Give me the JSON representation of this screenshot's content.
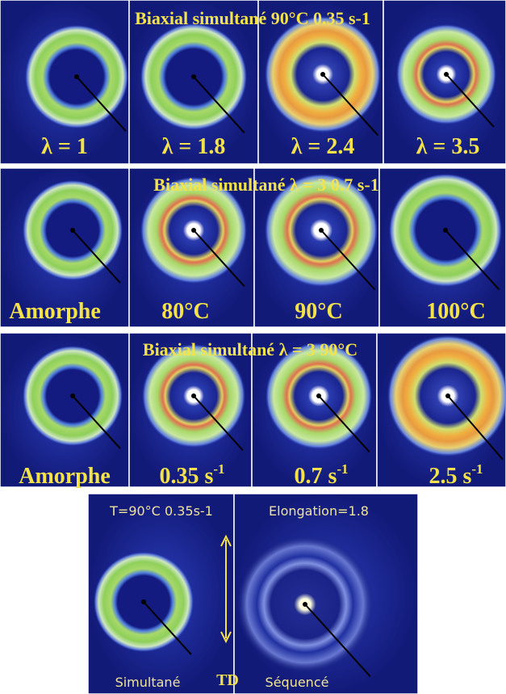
{
  "panels": [
    {
      "title": "Biaxial simultané  90°C  0.35 s-1",
      "labels": [
        "λ = 1",
        "λ = 1.8",
        "λ = 2.4",
        "λ = 3.5"
      ]
    },
    {
      "title": "Biaxial simultané  λ = 3  0.7 s-1",
      "labels": [
        "Amorphe",
        "80°C",
        "90°C",
        "100°C"
      ]
    },
    {
      "title": "Biaxial simultané  λ = 3  90°C",
      "labels": [
        "Amorphe",
        {
          "text": "0.35 s",
          "sup": "-1"
        },
        {
          "text": "0.7 s",
          "sup": "-1"
        },
        {
          "text": "2.5 s",
          "sup": "-1"
        }
      ]
    },
    {
      "title_left": "T=90°C  0.35s-1",
      "title_right": "Elongation=1.8",
      "labels": [
        "Simultané",
        "TD",
        "Séquencé"
      ]
    }
  ]
}
